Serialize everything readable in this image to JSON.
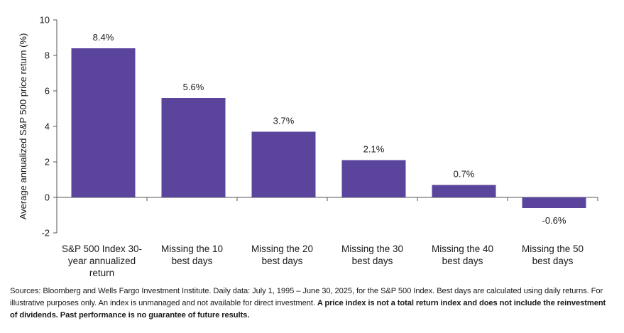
{
  "chart_data": {
    "type": "bar",
    "title": "",
    "xlabel": "",
    "ylabel": "Average annualized S&P 500 price return (%)",
    "ylim": [
      -2,
      10
    ],
    "yticks": [
      -2,
      0,
      2,
      4,
      6,
      8,
      10
    ],
    "ytick_labels": [
      "-2",
      "0",
      "2",
      "4",
      "6",
      "8",
      "10"
    ],
    "categories": [
      [
        "S&P 500 Index 30-",
        "year annualized",
        "return"
      ],
      [
        "Missing the 10",
        "best days"
      ],
      [
        "Missing the 20",
        "best days"
      ],
      [
        "Missing the 30",
        "best days"
      ],
      [
        "Missing the 40",
        "best days"
      ],
      [
        "Missing the 50",
        "best days"
      ]
    ],
    "values": [
      8.4,
      5.6,
      3.7,
      2.1,
      0.7,
      -0.6
    ],
    "data_labels": [
      "8.4%",
      "5.6%",
      "3.7%",
      "2.1%",
      "0.7%",
      "-0.6%"
    ],
    "bar_color": "#5b459c",
    "grid": false
  },
  "footnote": {
    "normal": "Sources: Bloomberg and Wells Fargo Investment Institute. Daily data: July 1, 1995 – June 30, 2025, for the S&P 500 Index. Best days are calculated using daily returns. For illustrative purposes only. An index is unmanaged and not available for direct investment. ",
    "bold": "A price index is not a total return index and does not include the reinvestment of dividends. Past performance is no guarantee of future results."
  }
}
